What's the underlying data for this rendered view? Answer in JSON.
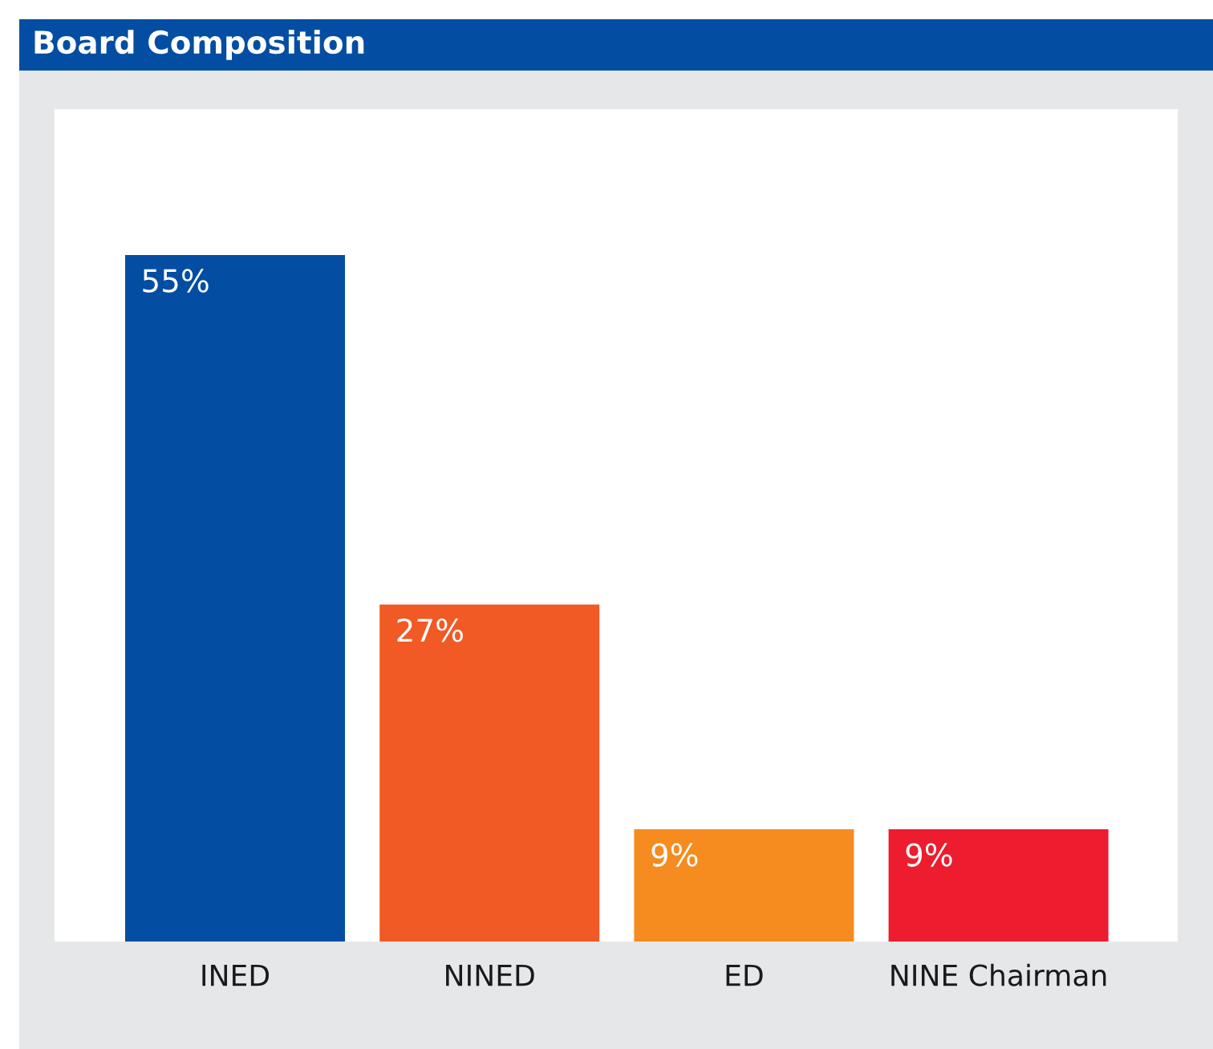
{
  "chart_data": {
    "type": "bar",
    "title": "Board Composition",
    "categories": [
      "INED",
      "NINED",
      "ED",
      "NINE Chairman"
    ],
    "values": [
      55,
      27,
      9,
      9
    ],
    "colors": [
      "#034ea2",
      "#f15a24",
      "#f68b1f",
      "#ed1c2e"
    ],
    "value_labels": [
      "55%",
      "27%",
      "9%",
      "9%"
    ]
  }
}
